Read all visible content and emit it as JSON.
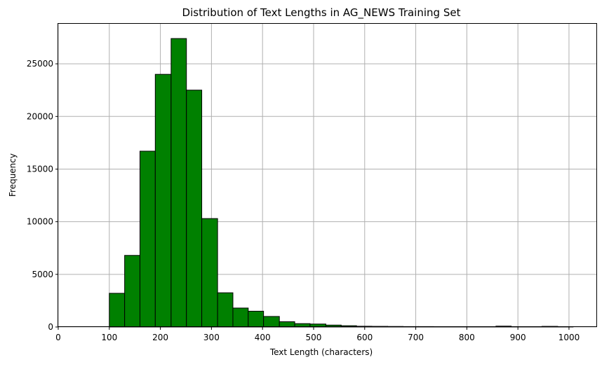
{
  "chart_data": {
    "type": "bar",
    "title": "Distribution of Text Lengths in AG_NEWS Training Set",
    "xlabel": "Text Length (characters)",
    "ylabel": "Frequency",
    "xlim": [
      0,
      1055
    ],
    "ylim": [
      0,
      28800
    ],
    "x_ticks": [
      0,
      100,
      200,
      300,
      400,
      500,
      600,
      700,
      800,
      900,
      1000
    ],
    "y_ticks": [
      0,
      5000,
      10000,
      15000,
      20000,
      25000
    ],
    "grid": true,
    "bar_color": "#008000",
    "edge_color": "#000000",
    "bins": [
      {
        "start": 100,
        "end": 130,
        "value": 3200
      },
      {
        "start": 130,
        "end": 160,
        "value": 6800
      },
      {
        "start": 160,
        "end": 190,
        "value": 16700
      },
      {
        "start": 190,
        "end": 221,
        "value": 24000
      },
      {
        "start": 221,
        "end": 251,
        "value": 27400
      },
      {
        "start": 251,
        "end": 281,
        "value": 22500
      },
      {
        "start": 281,
        "end": 312,
        "value": 10300
      },
      {
        "start": 312,
        "end": 342,
        "value": 3250
      },
      {
        "start": 342,
        "end": 372,
        "value": 1800
      },
      {
        "start": 372,
        "end": 402,
        "value": 1500
      },
      {
        "start": 402,
        "end": 433,
        "value": 1000
      },
      {
        "start": 433,
        "end": 463,
        "value": 500
      },
      {
        "start": 463,
        "end": 493,
        "value": 320
      },
      {
        "start": 493,
        "end": 524,
        "value": 280
      },
      {
        "start": 524,
        "end": 554,
        "value": 180
      },
      {
        "start": 554,
        "end": 584,
        "value": 120
      },
      {
        "start": 584,
        "end": 614,
        "value": 70
      },
      {
        "start": 614,
        "end": 645,
        "value": 60
      },
      {
        "start": 645,
        "end": 675,
        "value": 50
      },
      {
        "start": 675,
        "end": 705,
        "value": 40
      },
      {
        "start": 705,
        "end": 735,
        "value": 40
      },
      {
        "start": 735,
        "end": 766,
        "value": 30
      },
      {
        "start": 766,
        "end": 796,
        "value": 20
      },
      {
        "start": 796,
        "end": 826,
        "value": 15
      },
      {
        "start": 826,
        "end": 857,
        "value": 12
      },
      {
        "start": 857,
        "end": 887,
        "value": 80
      },
      {
        "start": 887,
        "end": 917,
        "value": 8
      },
      {
        "start": 917,
        "end": 947,
        "value": 8
      },
      {
        "start": 947,
        "end": 978,
        "value": 60
      },
      {
        "start": 978,
        "end": 1008,
        "value": 5
      }
    ]
  }
}
